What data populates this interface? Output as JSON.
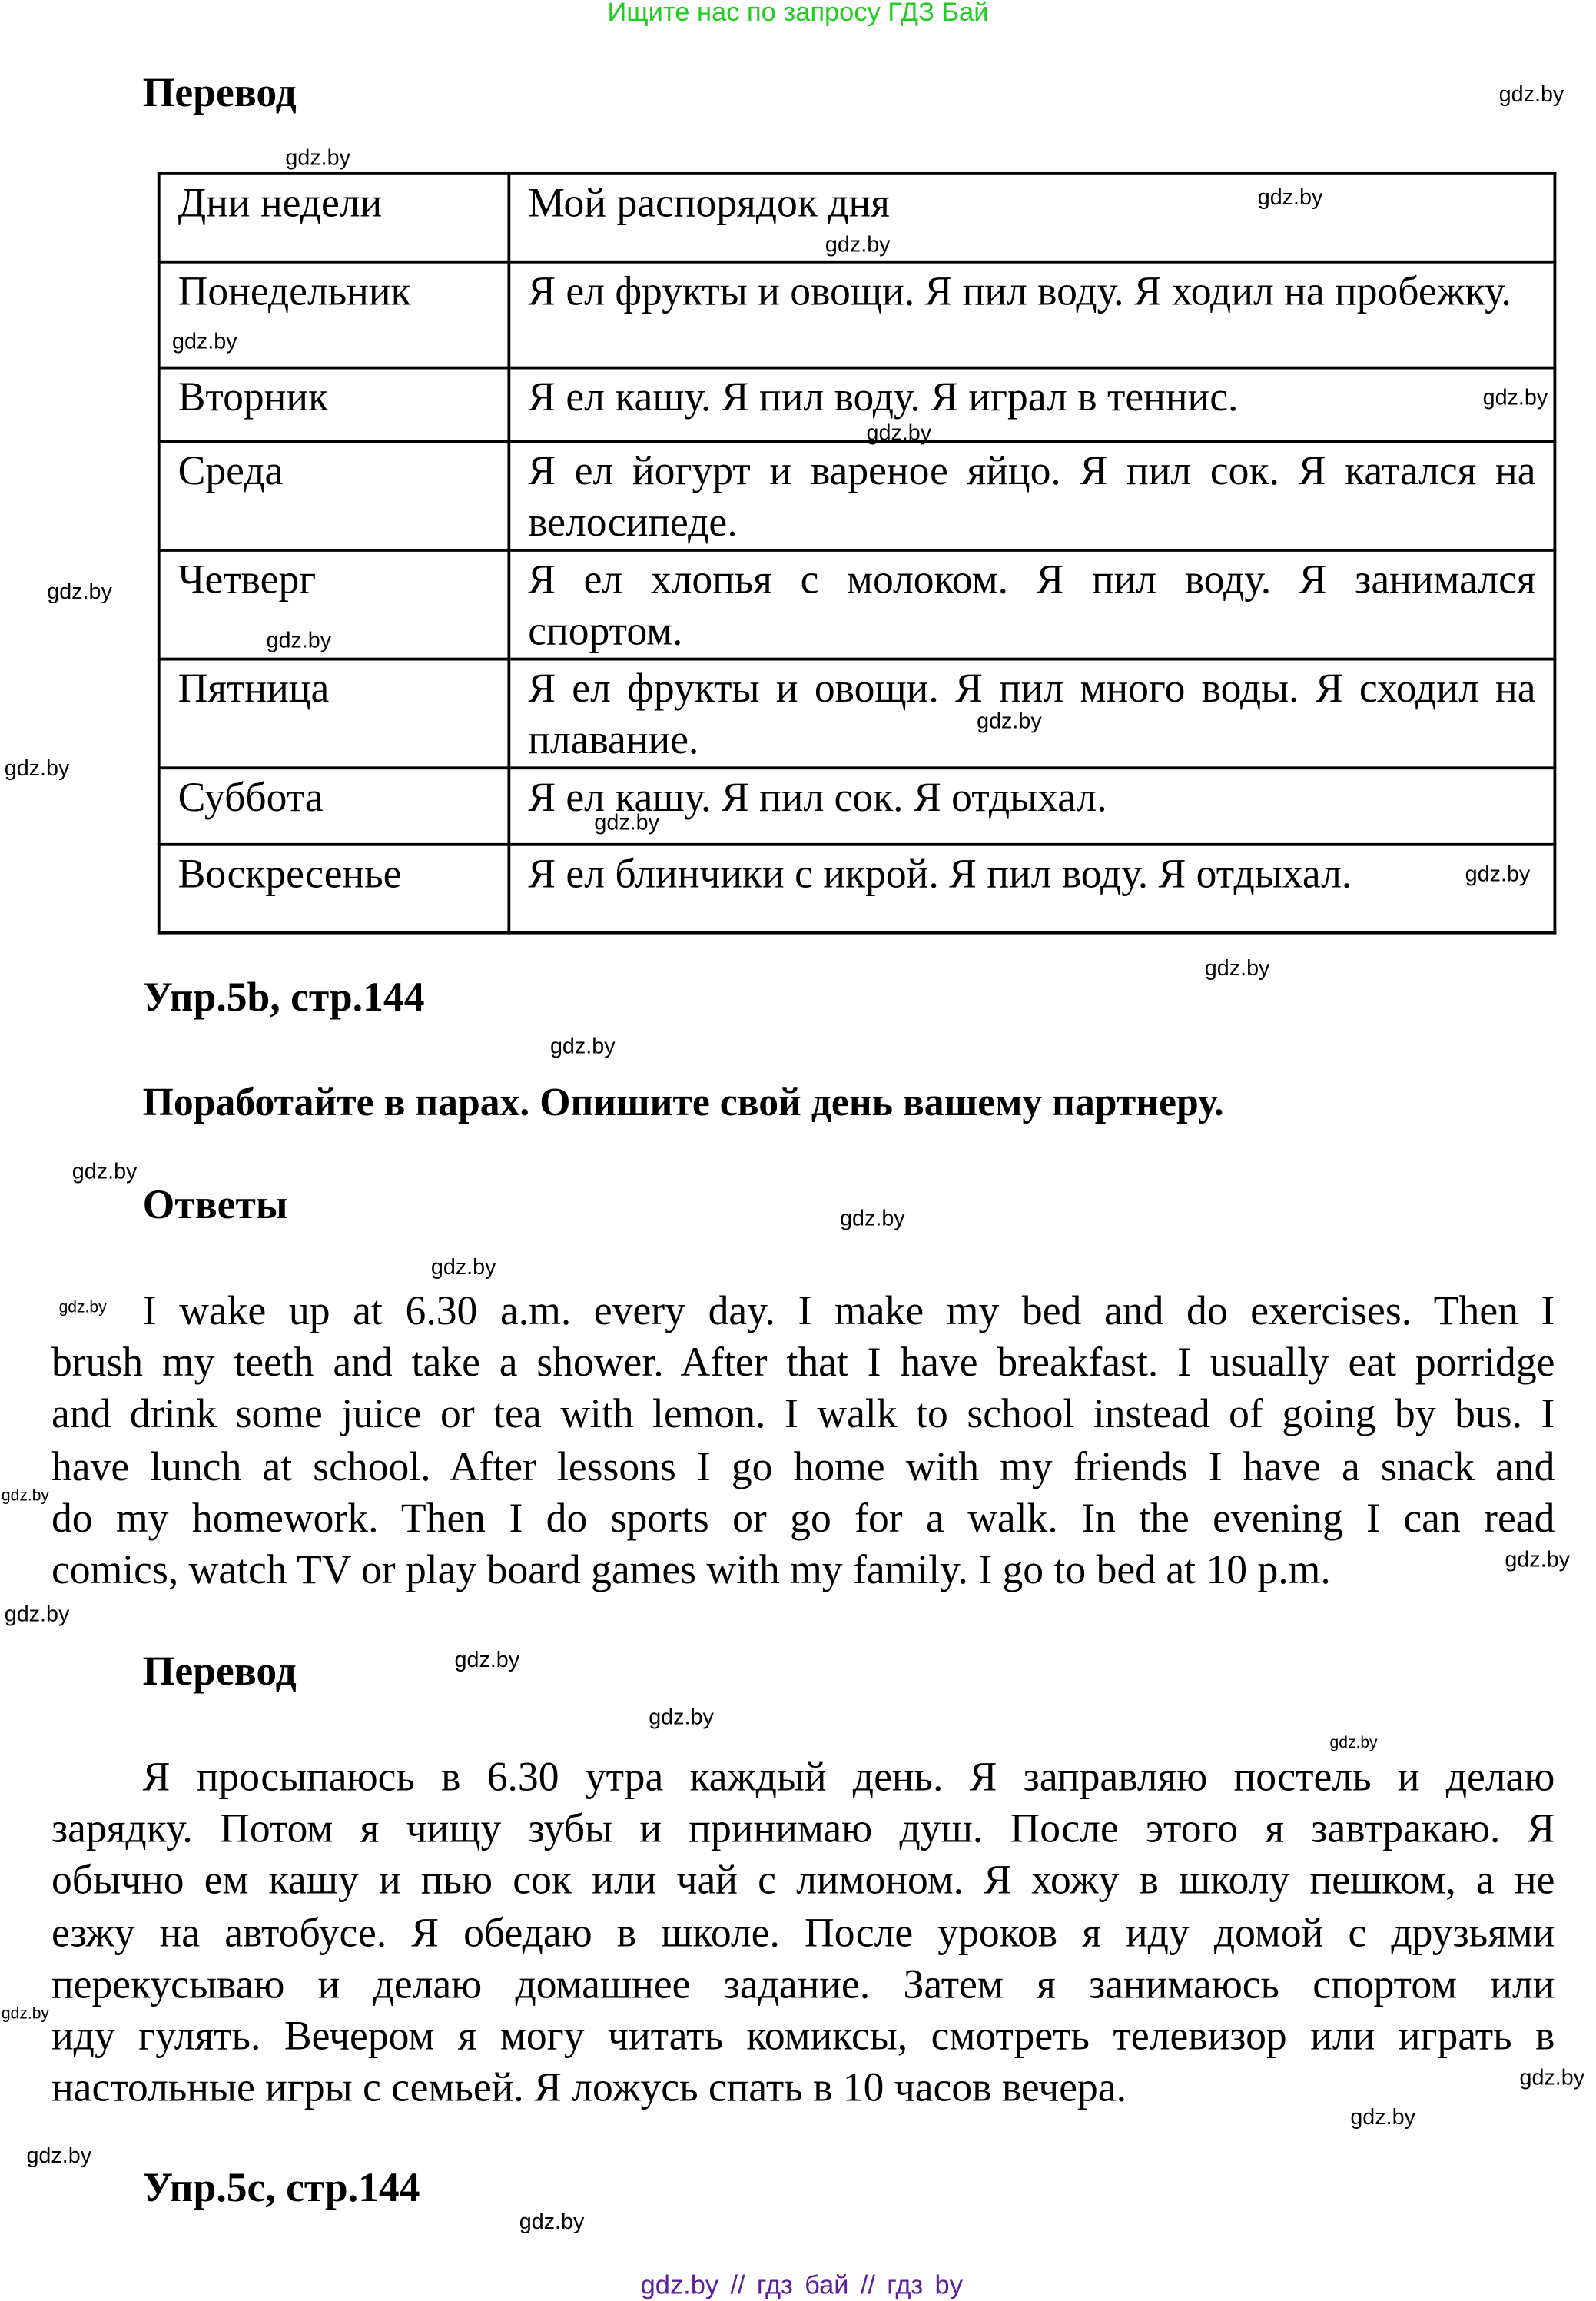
{
  "banner": "Ищите нас по запросу ГДЗ Бай",
  "translation1": {
    "heading": "Перевод",
    "table": {
      "headers": [
        "Дни недели",
        "Мой распорядок дня"
      ],
      "rows": [
        {
          "day": "Понедельник",
          "activity": "Я ел фрукты и овощи. Я пил воду. Я ходил на пробежку."
        },
        {
          "day": "Вторник",
          "activity": "Я ел кашу. Я пил воду. Я играл в теннис."
        },
        {
          "day": "Среда",
          "activity": "Я ел йогурт и вареное яйцо. Я пил сок. Я катался на велосипеде."
        },
        {
          "day": "Четверг",
          "activity": "Я ел хлопья с молоком. Я пил воду. Я занимался спортом."
        },
        {
          "day": "Пятница",
          "activity": "Я ел фрукты и овощи. Я пил много воды. Я сходил на плавание."
        },
        {
          "day": "Суббота",
          "activity": "Я ел кашу. Я пил сок. Я отдыхал."
        },
        {
          "day": "Воскресенье",
          "activity": "Я ел блинчики с икрой. Я пил воду. Я отдыхал."
        }
      ]
    }
  },
  "exercise5b": {
    "heading": "Упр.5b, стр.144",
    "task": "Поработайте в парах. Опишите свой день вашему партнеру.",
    "answers_heading": "Ответы",
    "answer_lines": [
      "I wake up at 6.30 a.m. every day. I make my bed and do exercises. Then I",
      "brush my teeth and take a shower. After that I have breakfast. I usually eat porridge",
      "and drink some juice or tea with lemon. I walk to school instead of going by bus. I",
      "have lunch at school. After lessons I go home with my friends I have a snack and",
      "do my homework. Then I do sports or go for a walk. In the evening I can read",
      "comics, watch TV or play board games with my family. I go to bed at 10 p.m."
    ],
    "translation_heading": "Перевод",
    "translation_lines": [
      "Я просыпаюсь в 6.30 утра каждый день. Я заправляю постель и делаю",
      "зарядку. Потом я чищу зубы и принимаю душ. После этого я завтракаю. Я",
      "обычно ем кашу и пью сок или чай с лимоном. Я хожу в школу пешком, а не",
      "езжу на автобусе. Я обедаю в школе. После уроков я иду домой с друзьями",
      "перекусываю и делаю домашнее задание. Затем я занимаюсь спортом или",
      "иду гулять. Вечером я могу читать комиксы, смотреть телевизор или играть в",
      "настольные игры с семьей. Я ложусь спать в 10 часов вечера."
    ]
  },
  "exercise5c": {
    "heading": "Упр.5c, стр.144"
  },
  "watermark": "gdz.by",
  "footer": "gdz.by // гдз бай // гдз by",
  "colors": {
    "banner": "#22cc22",
    "footer": "#5a1f9a"
  }
}
